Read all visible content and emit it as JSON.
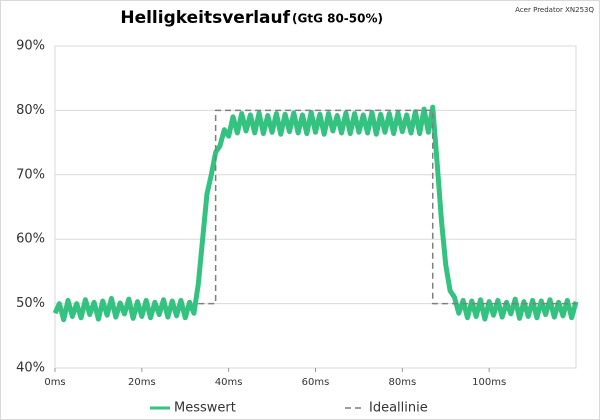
{
  "chart_data": {
    "type": "line",
    "title": "Helligkeitsverlauf",
    "subtitle": "(GtG 80-50%)",
    "annotation": "Acer Predator XN253Q",
    "x": [
      0,
      1,
      2,
      3,
      4,
      5,
      6,
      7,
      8,
      9,
      10,
      11,
      12,
      13,
      14,
      15,
      16,
      17,
      18,
      19,
      20,
      21,
      22,
      23,
      24,
      25,
      26,
      27,
      28,
      29,
      30,
      31,
      32,
      33,
      34,
      35,
      36,
      37,
      38,
      39,
      40,
      41,
      42,
      43,
      44,
      45,
      46,
      47,
      48,
      49,
      50,
      51,
      52,
      53,
      54,
      55,
      56,
      57,
      58,
      59,
      60,
      61,
      62,
      63,
      64,
      65,
      66,
      67,
      68,
      69,
      70,
      71,
      72,
      73,
      74,
      75,
      76,
      77,
      78,
      79,
      80,
      81,
      82,
      83,
      84,
      85,
      86,
      87,
      88,
      89,
      90,
      91,
      92,
      93,
      94,
      95,
      96,
      97,
      98,
      99,
      100,
      101,
      102,
      103,
      104,
      105,
      106,
      107,
      108,
      109,
      110,
      111,
      112,
      113,
      114,
      115,
      116,
      117,
      118,
      119,
      120
    ],
    "series": [
      {
        "name": "Messwert",
        "color": "#33c27f",
        "style": "solid",
        "values": [
          48.5,
          50,
          47.5,
          50.5,
          48,
          50,
          47.8,
          50.6,
          48.3,
          50.2,
          47.6,
          50.4,
          48.2,
          50.8,
          47.9,
          50.1,
          48.4,
          50.7,
          47.7,
          50.3,
          48,
          50.5,
          47.8,
          50.2,
          48.3,
          50.6,
          47.9,
          50.4,
          48.1,
          50.5,
          47.8,
          50.2,
          48.5,
          53,
          60,
          67,
          70,
          73.5,
          74.5,
          77,
          76,
          79,
          76.5,
          79.5,
          76.8,
          79.3,
          76.5,
          79.6,
          76.4,
          79.2,
          76.6,
          79.5,
          76.3,
          79.4,
          76.7,
          79.6,
          76.5,
          79.3,
          76.4,
          79.7,
          76.6,
          79.4,
          76.3,
          79.5,
          76.8,
          79.2,
          76.5,
          79.6,
          76.4,
          79.5,
          76.6,
          79.3,
          76.5,
          79.7,
          76.3,
          79.4,
          76.6,
          79.5,
          76.4,
          79.6,
          76.7,
          79.3,
          76.5,
          79.8,
          76.4,
          80.2,
          76.6,
          80.5,
          72,
          63,
          56,
          52,
          51,
          48.5,
          50.5,
          47.8,
          50.4,
          48,
          50.6,
          47.6,
          50.3,
          48.2,
          50.5,
          47.9,
          50.2,
          48.4,
          50.7,
          47.7,
          50.3,
          48,
          50.5,
          47.8,
          50.4,
          48.3,
          50.6,
          47.9,
          50.2,
          48.1,
          50.5,
          47.8,
          50.3
        ]
      },
      {
        "name": "Ideallinie",
        "color": "#7f7f7f",
        "style": "dashed",
        "x": [
          33,
          37,
          37,
          87,
          87,
          120
        ],
        "values": [
          50,
          50,
          80,
          80,
          50,
          50
        ]
      }
    ],
    "xlim": [
      0,
      120
    ],
    "xticks": [
      {
        "value": 0,
        "label": "0ms"
      },
      {
        "value": 20,
        "label": "20ms"
      },
      {
        "value": 40,
        "label": "40ms"
      },
      {
        "value": 60,
        "label": "60ms"
      },
      {
        "value": 80,
        "label": "80ms"
      },
      {
        "value": 100,
        "label": "100ms"
      }
    ],
    "ylim": [
      40,
      90
    ],
    "yticks": [
      {
        "value": 40,
        "label": "40%"
      },
      {
        "value": 50,
        "label": "50%"
      },
      {
        "value": 60,
        "label": "60%"
      },
      {
        "value": 70,
        "label": "70%"
      },
      {
        "value": 80,
        "label": "80%"
      },
      {
        "value": 90,
        "label": "90%"
      }
    ],
    "grid": true,
    "legend": "bottom"
  }
}
